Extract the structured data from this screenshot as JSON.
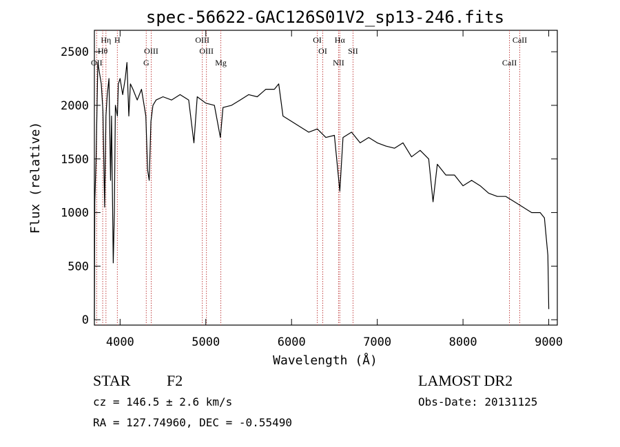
{
  "chart_data": {
    "type": "line",
    "title": "spec-56622-GAC126S01V2_sp13-246.fits",
    "xlabel": "Wavelength (Å)",
    "ylabel": "Flux (relative)",
    "xlim": [
      3700,
      9100
    ],
    "ylim": [
      -50,
      2700
    ],
    "xticks": [
      4000,
      5000,
      6000,
      7000,
      8000,
      9000
    ],
    "yticks": [
      0,
      500,
      1000,
      1500,
      2000,
      2500
    ],
    "grid": false,
    "series": [
      {
        "x": [
          3700,
          3705,
          3720,
          3740,
          3760,
          3780,
          3800,
          3820,
          3835,
          3850,
          3870,
          3889,
          3900,
          3920,
          3933,
          3945,
          3968,
          3980,
          4000,
          4030,
          4060,
          4080,
          4102,
          4120,
          4150,
          4200,
          4250,
          4300,
          4320,
          4340,
          4360,
          4383,
          4420,
          4500,
          4600,
          4700,
          4800,
          4861,
          4900,
          5000,
          5100,
          5170,
          5200,
          5300,
          5400,
          5500,
          5600,
          5700,
          5800,
          5850,
          5900,
          6000,
          6100,
          6200,
          6300,
          6400,
          6500,
          6563,
          6600,
          6700,
          6800,
          6900,
          7000,
          7100,
          7200,
          7300,
          7400,
          7500,
          7600,
          7650,
          7700,
          7800,
          7900,
          8000,
          8100,
          8200,
          8300,
          8400,
          8500,
          8600,
          8700,
          8800,
          8900,
          8950,
          8990,
          9000
        ],
        "values": [
          0,
          1100,
          1500,
          2400,
          2300,
          2200,
          1950,
          1050,
          1900,
          2100,
          2250,
          1300,
          1900,
          530,
          1000,
          2000,
          1900,
          2200,
          2250,
          2100,
          2250,
          2400,
          1900,
          2200,
          2150,
          2050,
          2150,
          1900,
          1400,
          1300,
          1850,
          2000,
          2050,
          2080,
          2050,
          2100,
          2050,
          1650,
          2080,
          2020,
          2000,
          1700,
          1980,
          2000,
          2050,
          2100,
          2080,
          2150,
          2150,
          2200,
          1900,
          1850,
          1800,
          1750,
          1780,
          1700,
          1720,
          1200,
          1700,
          1750,
          1650,
          1700,
          1650,
          1620,
          1600,
          1650,
          1520,
          1580,
          1500,
          1100,
          1450,
          1350,
          1350,
          1250,
          1300,
          1250,
          1180,
          1150,
          1150,
          1100,
          1050,
          1000,
          1000,
          950,
          600,
          100
        ]
      }
    ],
    "line_ids": [
      {
        "label": "Hη",
        "wave": 3835
      },
      {
        "label": "Hθ",
        "wave": 3797
      },
      {
        "label": "OII",
        "wave": 3727
      },
      {
        "label": "H",
        "wave": 3968
      },
      {
        "label": "OIII",
        "wave": 4363
      },
      {
        "label": "G",
        "wave": 4305
      },
      {
        "label": "OIII",
        "wave": 4959
      },
      {
        "label": "OIII",
        "wave": 5007
      },
      {
        "label": "Mg",
        "wave": 5175
      },
      {
        "label": "OI",
        "wave": 6300
      },
      {
        "label": "OI",
        "wave": 6364
      },
      {
        "label": "NII",
        "wave": 6548
      },
      {
        "label": "Hα",
        "wave": 6563
      },
      {
        "label": "SII",
        "wave": 6717
      },
      {
        "label": "CaII",
        "wave": 8542
      },
      {
        "label": "CaII",
        "wave": 8662
      }
    ]
  },
  "info": {
    "class": "STAR",
    "subclass": "F2",
    "survey": "LAMOST DR2",
    "cz": "cz = 146.5 ± 2.6 km/s",
    "obs_date": "Obs-Date: 20131125",
    "coords": "RA = 127.74960, DEC =  -0.55490"
  }
}
